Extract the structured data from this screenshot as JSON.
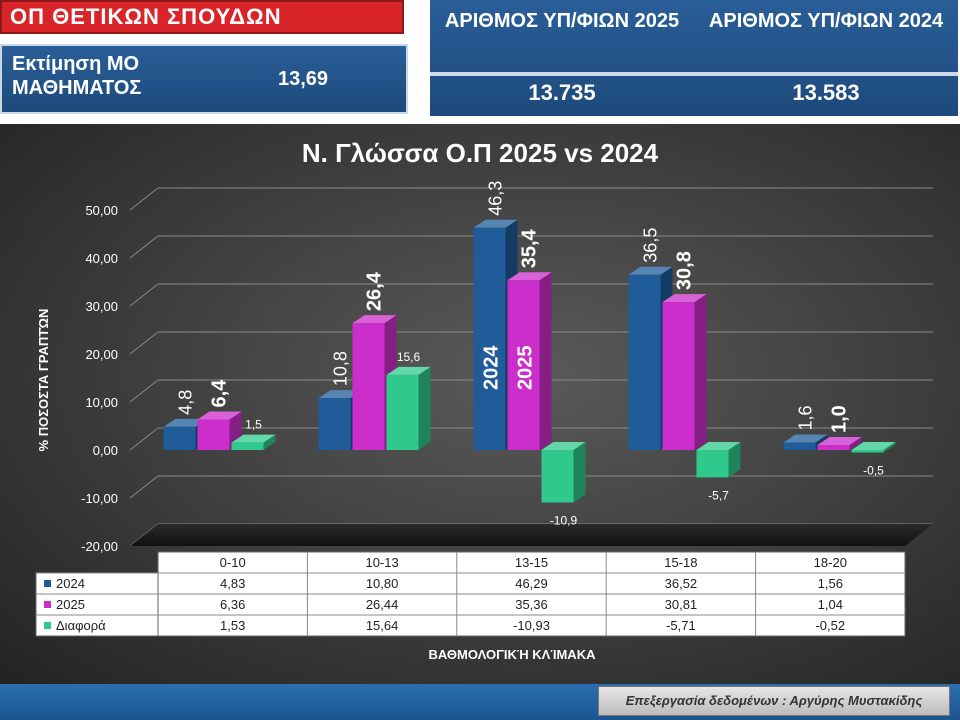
{
  "header": {
    "field_title": "ΟΠ ΘΕΤΙΚΩΝ ΣΠΟΥΔΩΝ",
    "mo_label": "Εκτίμηση ΜΟ ΜΑΘΗΜΑΤΟΣ",
    "mo_value": "13,69"
  },
  "candidates": {
    "col1_header": "ΑΡΙΘΜΟΣ ΥΠ/ΦΙΩΝ 2025",
    "col2_header": "ΑΡΙΘΜΟΣ ΥΠ/ΦΙΩΝ 2024",
    "col1_value": "13.735",
    "col2_value": "13.583"
  },
  "chart_data": {
    "type": "bar",
    "title": "Ν. Γλώσσα Ο.Π 2025 vs 2024",
    "xlabel": "ΒΑΘΜΟΛΟΓΙΚΉ ΚΛΊΜΑΚΑ",
    "ylabel": "% ΠΟΣΟΣΤΑ ΓΡΑΠΤΏΝ",
    "categories": [
      "0-10",
      "10-13",
      "13-15",
      "15-18",
      "18-20"
    ],
    "ylim": [
      -20,
      50
    ],
    "yticks": [
      "-20,00",
      "-10,00",
      "0,00",
      "10,00",
      "20,00",
      "30,00",
      "40,00",
      "50,00"
    ],
    "series": [
      {
        "name": "2024",
        "color": "#1f5c99",
        "values": [
          4.83,
          10.8,
          46.29,
          36.52,
          1.56
        ],
        "table": [
          "4,83",
          "10,80",
          "46,29",
          "36,52",
          "1,56"
        ],
        "labels": [
          "4,8",
          "10,8",
          "46,3",
          "36,5",
          "1,6"
        ]
      },
      {
        "name": "2025",
        "color": "#cc2ecc",
        "values": [
          6.36,
          26.44,
          35.36,
          30.81,
          1.04
        ],
        "table": [
          "6,36",
          "26,44",
          "35,36",
          "30,81",
          "1,04"
        ],
        "labels": [
          "6,4",
          "26,4",
          "35,4",
          "30,8",
          "1,0"
        ]
      },
      {
        "name": "Διαφορά",
        "color": "#2fc98e",
        "values": [
          1.53,
          15.64,
          -10.93,
          -5.71,
          -0.52
        ],
        "table": [
          "1,53",
          "15,64",
          "-10,93",
          "-5,71",
          "-0,52"
        ],
        "labels": [
          "1,5",
          "15,6",
          "-10,9",
          "-5,7",
          "-0,5"
        ]
      }
    ],
    "in_bar_labels": [
      "2024",
      "2025"
    ],
    "grid": true,
    "legend": "data-table"
  },
  "footer": {
    "credit": "Επεξεργασία δεδομένων : Αργύρης Μυστακίδης"
  }
}
